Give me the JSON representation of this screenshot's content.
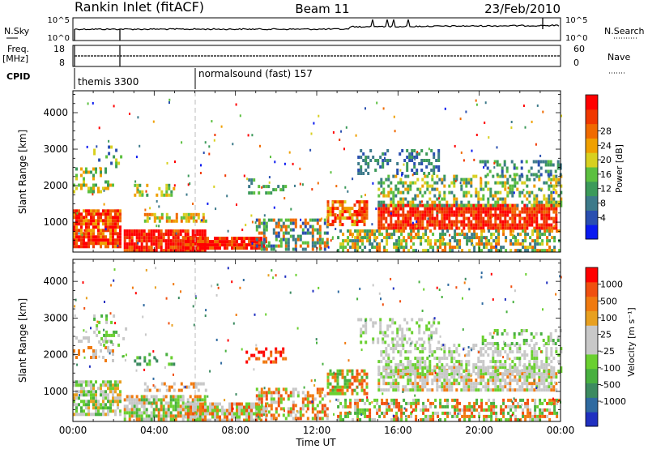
{
  "header": {
    "station": "Rankin Inlet (fitACF)",
    "beam": "Beam 11",
    "date": "23/Feb/2010"
  },
  "strips": {
    "nsky_label": "N.Sky",
    "nsky_ticks": [
      "10^5",
      "10^0"
    ],
    "nsearch_label": "N.Search",
    "nsearch_ticks": [
      "10^5",
      "10^0"
    ],
    "freq_label": "Freq.",
    "freq_unit": "[MHz]",
    "freq_ticks": [
      "18",
      "8"
    ],
    "nave_label": "Nave",
    "nave_ticks": [
      "60",
      "0"
    ],
    "cpid_label": "CPID",
    "cpid_modes": [
      {
        "name": "themis 3300",
        "start_hour": 0
      },
      {
        "name": "normalsound (fast) 157",
        "start_hour": 6
      }
    ]
  },
  "chart_data": [
    {
      "type": "heatmap",
      "name": "power",
      "xlabel": "",
      "ylabel": "Slant Range [km]",
      "xlim": [
        0,
        24
      ],
      "ylim": [
        180,
        4600
      ],
      "x_ticks": [
        "00:00",
        "04:00",
        "08:00",
        "12:00",
        "16:00",
        "20:00",
        "00:00"
      ],
      "y_ticks": [
        1000,
        2000,
        3000,
        4000
      ],
      "colorbar": {
        "label": "Power [dB]",
        "ticks": [
          "4",
          "8",
          "12",
          "16",
          "20",
          "24",
          "28"
        ],
        "colors": [
          "#0a1af0",
          "#2a4fb0",
          "#3d7a8a",
          "#3c9a5a",
          "#5cc040",
          "#d8d020",
          "#f0a000",
          "#f06a00",
          "#f03800",
          "#ff0000"
        ]
      }
    },
    {
      "type": "heatmap",
      "name": "velocity",
      "xlabel": "Time UT",
      "ylabel": "Slant Range [km]",
      "xlim": [
        0,
        24
      ],
      "ylim": [
        180,
        4600
      ],
      "x_ticks": [
        "00:00",
        "04:00",
        "08:00",
        "12:00",
        "16:00",
        "20:00",
        "00:00"
      ],
      "y_ticks": [
        1000,
        2000,
        3000,
        4000
      ],
      "colorbar": {
        "label": "Velocity [m s⁻¹]",
        "ticks": [
          "1000",
          "500",
          "100",
          "25",
          "-25",
          "-100",
          "-500",
          "-1000"
        ],
        "colors": [
          "#2030c0",
          "#2f6aa0",
          "#3c8a60",
          "#48b040",
          "#6ad030",
          "#c8c8c8",
          "#c8c8c8",
          "#e8a020",
          "#f07a10",
          "#f05010",
          "#ff0000"
        ]
      }
    }
  ]
}
